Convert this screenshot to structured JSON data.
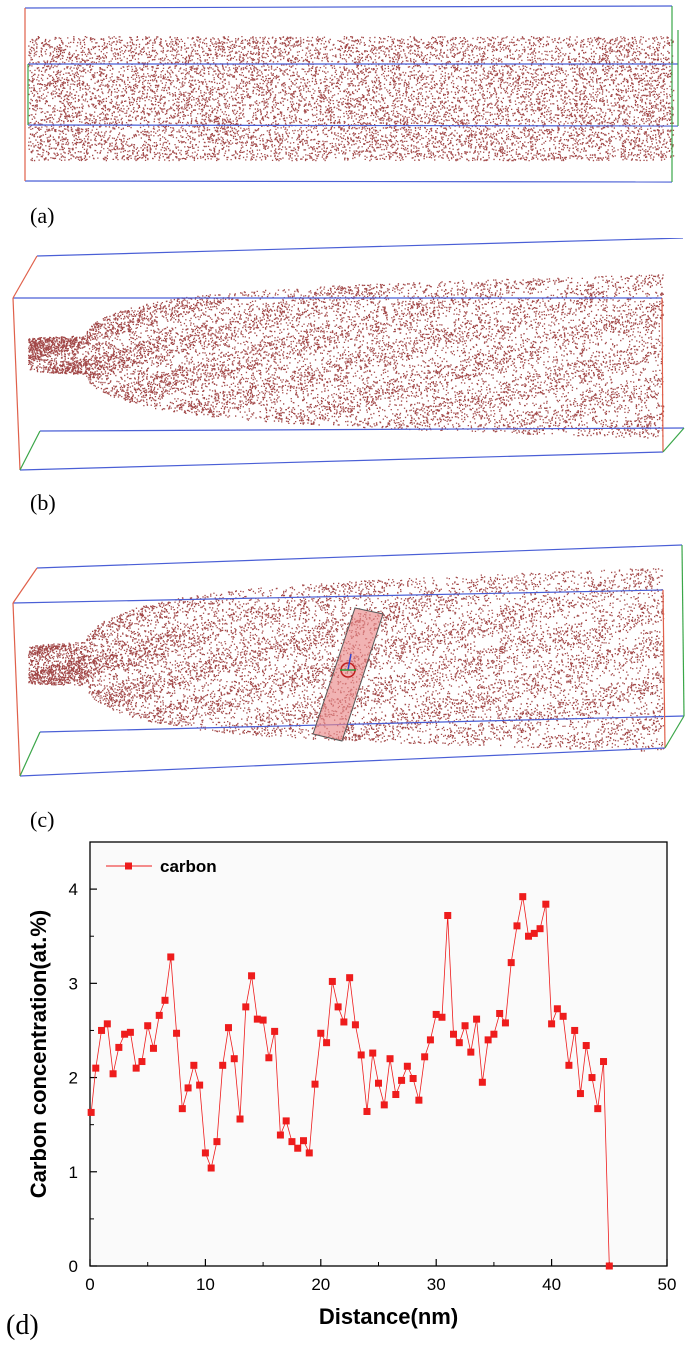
{
  "panels": {
    "a": {
      "label": "(a)"
    },
    "b": {
      "label": "(b)"
    },
    "c": {
      "label": "(c)"
    },
    "d": {
      "label": "(d)"
    }
  },
  "colors": {
    "atoms": "#8b1a1a",
    "box_blue": "#4a5fd6",
    "box_red": "#e0604a",
    "box_green": "#3aa648",
    "series": "#ee1c1c",
    "cylinder": "#e98a8a"
  },
  "chart_data": {
    "type": "line",
    "title": "",
    "xlabel": "Distance(nm)",
    "ylabel": "Carbon concentration(at.%)",
    "xlim": [
      0,
      50
    ],
    "ylim": [
      0,
      4.5
    ],
    "xticks": [
      0,
      10,
      20,
      30,
      40,
      50
    ],
    "yticks": [
      0,
      1,
      2,
      3,
      4
    ],
    "grid": false,
    "legend": "top-left",
    "markers": "square",
    "series": [
      {
        "name": "carbon",
        "color": "#ee1c1c",
        "x": [
          0.1,
          0.5,
          1.0,
          1.5,
          2.0,
          2.5,
          3.0,
          3.5,
          4.0,
          4.5,
          5.0,
          5.5,
          6.0,
          6.5,
          7.0,
          7.5,
          8.0,
          8.5,
          9.0,
          9.5,
          10.0,
          10.5,
          11.0,
          11.5,
          12.0,
          12.5,
          13.0,
          13.5,
          14.0,
          14.5,
          15.0,
          15.5,
          16.0,
          16.5,
          17.0,
          17.5,
          18.0,
          18.5,
          19.0,
          19.5,
          20.0,
          20.5,
          21.0,
          21.5,
          22.0,
          22.5,
          23.0,
          23.5,
          24.0,
          24.5,
          25.0,
          25.5,
          26.0,
          26.5,
          27.0,
          27.5,
          28.0,
          28.5,
          29.0,
          29.5,
          30.0,
          30.5,
          31.0,
          31.5,
          32.0,
          32.5,
          33.0,
          33.5,
          34.0,
          34.5,
          35.0,
          35.5,
          36.0,
          36.5,
          37.0,
          37.5,
          38.0,
          38.5,
          39.0,
          39.5,
          40.0,
          40.5,
          41.0,
          41.5,
          42.0,
          42.5,
          43.0,
          43.5,
          44.0,
          44.5,
          45.0
        ],
        "values": [
          1.63,
          2.1,
          2.5,
          2.57,
          2.04,
          2.32,
          2.46,
          2.48,
          2.1,
          2.17,
          2.55,
          2.31,
          2.66,
          2.82,
          3.28,
          2.47,
          1.67,
          1.89,
          2.13,
          1.92,
          1.2,
          1.04,
          1.32,
          2.13,
          2.53,
          2.2,
          1.56,
          2.75,
          3.08,
          2.62,
          2.61,
          2.21,
          2.49,
          1.39,
          1.54,
          1.32,
          1.25,
          1.33,
          1.2,
          1.93,
          2.47,
          2.37,
          3.02,
          2.75,
          2.59,
          3.06,
          2.56,
          2.24,
          1.64,
          2.26,
          1.94,
          1.71,
          2.2,
          1.82,
          1.97,
          2.12,
          1.99,
          1.76,
          2.22,
          2.4,
          2.67,
          2.64,
          3.72,
          2.46,
          2.37,
          2.55,
          2.27,
          2.62,
          1.95,
          2.4,
          2.46,
          2.68,
          2.58,
          3.22,
          3.61,
          3.92,
          3.5,
          3.53,
          3.58,
          3.84,
          2.57,
          2.73,
          2.65,
          2.13,
          2.5,
          1.83,
          2.34,
          2.0,
          1.67,
          2.17,
          0.0
        ]
      }
    ]
  }
}
